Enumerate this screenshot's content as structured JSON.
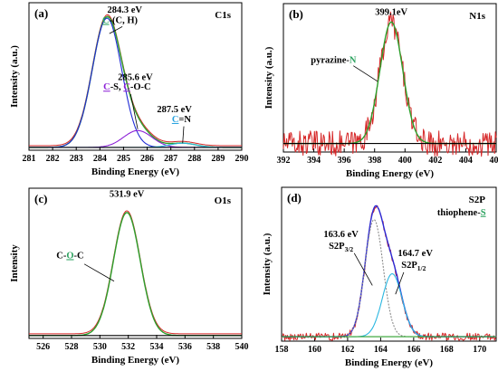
{
  "chart_data": [
    {
      "type": "line",
      "panel_label": "(a)",
      "element_label": "C1s",
      "xlabel": "Binding Energy (eV)",
      "ylabel": "Intensity (a.u.)",
      "xlim": [
        281,
        290
      ],
      "xticks": [
        "281",
        "282",
        "283",
        "284",
        "285",
        "286",
        "287",
        "288",
        "289",
        "290"
      ],
      "ylim": [
        0,
        1.05
      ],
      "peaks": [
        {
          "center": 284.3,
          "height": 0.92,
          "sigma": 0.62
        },
        {
          "center": 285.6,
          "height": 0.12,
          "sigma": 0.6
        },
        {
          "center": 287.5,
          "height": 0.03,
          "sigma": 0.55
        }
      ],
      "background": 0.02,
      "noise": 0,
      "annotations": [
        {
          "value": "284.3 eV",
          "x": 285.05,
          "y": 0.98,
          "color": "#000000"
        },
        {
          "rich": [
            {
              "t": "C",
              "c": "#2ca25f",
              "u": true
            },
            {
              "t": "-(C, H)",
              "c": "#000000"
            }
          ],
          "x": 284.85,
          "y": 0.905
        },
        {
          "value": "285.6 eV",
          "x": 285.5,
          "y": 0.5,
          "color": "#000000"
        },
        {
          "rich": [
            {
              "t": "C",
              "c": "#8b1fd6",
              "u": true
            },
            {
              "t": "-S, ",
              "c": "#000000"
            },
            {
              "t": "C",
              "c": "#8b1fd6",
              "u": true
            },
            {
              "t": "-O-C",
              "c": "#000000"
            }
          ],
          "x": 285.15,
          "y": 0.43
        },
        {
          "value": "287.5 eV",
          "x": 287.15,
          "y": 0.27,
          "color": "#000000"
        },
        {
          "rich": [
            {
              "t": "C",
              "c": "#29a3e0",
              "u": true
            },
            {
              "t": "=N",
              "c": "#000000"
            }
          ],
          "x": 287.45,
          "y": 0.2
        }
      ],
      "pointers": [
        {
          "from": [
            284.95,
            0.88
          ],
          "to": [
            284.4,
            0.83
          ]
        },
        {
          "from": [
            285.3,
            0.4
          ],
          "to": [
            285.6,
            0.15
          ]
        },
        {
          "from": [
            287.55,
            0.17
          ],
          "to": [
            287.5,
            0.05
          ]
        }
      ],
      "series": [
        {
          "role": "raw",
          "color": "#d62728"
        },
        {
          "role": "envelope",
          "color": "#2ca02c"
        },
        {
          "role": "component",
          "index": 0,
          "color": "#1f2bd6"
        },
        {
          "role": "component",
          "index": 1,
          "color": "#8b1fd6"
        },
        {
          "role": "component",
          "index": 2,
          "color": "#29b6e0"
        },
        {
          "role": "baseline",
          "color": "#000000"
        }
      ]
    },
    {
      "type": "line",
      "panel_label": "(b)",
      "element_label": "N1s",
      "xlabel": "Binding Energy (eV)",
      "ylabel": "Intensity (a.u.)",
      "xlim": [
        392,
        406
      ],
      "xticks": [
        "392",
        "394",
        "396",
        "398",
        "400",
        "402",
        "404",
        "406"
      ],
      "ylim": [
        0,
        1.05
      ],
      "peaks": [
        {
          "center": 399.1,
          "height": 0.86,
          "sigma": 0.75
        }
      ],
      "background": 0.06,
      "noise": 0.09,
      "annotations": [
        {
          "value": "399.1eV",
          "x": 399.1,
          "y": 0.97,
          "color": "#000000"
        },
        {
          "rich": [
            {
              "t": "pyrazine-",
              "c": "#000000"
            },
            {
              "t": "N",
              "c": "#2ca25f",
              "u": false
            }
          ],
          "x": 395.3,
          "y": 0.63
        }
      ],
      "pointers": [
        {
          "from": [
            396.6,
            0.61
          ],
          "to": [
            398.2,
            0.5
          ]
        }
      ],
      "series": [
        {
          "role": "raw",
          "color": "#d62728"
        },
        {
          "role": "envelope",
          "color": "#2ca02c"
        },
        {
          "role": "baseline",
          "color": "#000000"
        }
      ]
    },
    {
      "type": "line",
      "panel_label": "(c)",
      "element_label": "O1s",
      "xlabel": "Binding Energy (eV)",
      "ylabel": "Intensity",
      "xlim": [
        525,
        540
      ],
      "xticks": [
        "526",
        "528",
        "530",
        "532",
        "534",
        "536",
        "538",
        "540"
      ],
      "ylim": [
        0,
        1.05
      ],
      "peaks": [
        {
          "center": 531.9,
          "height": 0.86,
          "sigma": 0.95
        }
      ],
      "background": 0.02,
      "noise": 0,
      "annotations": [
        {
          "value": "531.9 eV",
          "x": 531.9,
          "y": 0.99,
          "color": "#000000"
        },
        {
          "rich": [
            {
              "t": "C-",
              "c": "#000000"
            },
            {
              "t": "O",
              "c": "#2ca25f",
              "u": true
            },
            {
              "t": "-C",
              "c": "#000000"
            }
          ],
          "x": 527.9,
          "y": 0.56
        }
      ],
      "pointers": [
        {
          "from": [
            528.9,
            0.52
          ],
          "to": [
            531.0,
            0.4
          ]
        }
      ],
      "series": [
        {
          "role": "raw",
          "color": "#d62728"
        },
        {
          "role": "envelope",
          "color": "#2ca02c"
        },
        {
          "role": "baseline",
          "color": "#000000"
        }
      ]
    },
    {
      "type": "line",
      "panel_label": "(d)",
      "element_label": "S2P",
      "xlabel": "Binding Energy (eV)",
      "ylabel": "Intensity (a.u.)",
      "xlim": [
        158,
        171
      ],
      "xticks": [
        "158",
        "160",
        "162",
        "164",
        "166",
        "168",
        "170"
      ],
      "ylim": [
        0,
        1.05
      ],
      "peaks": [
        {
          "center": 163.6,
          "height": 0.8,
          "sigma": 0.55
        },
        {
          "center": 164.7,
          "height": 0.43,
          "sigma": 0.6
        }
      ],
      "background": 0.03,
      "noise": 0.025,
      "annotations": [
        {
          "rich": [
            {
              "t": "thiophene-",
              "c": "#000000"
            },
            {
              "t": "S",
              "c": "#2ca25f",
              "u": true
            }
          ],
          "x": 168.9,
          "y": 0.86
        },
        {
          "value": "163.6 eV",
          "x": 161.6,
          "y": 0.71,
          "color": "#000000"
        },
        {
          "sub": {
            "base": "S2P",
            "sub": "3/2"
          },
          "x": 161.6,
          "y": 0.63
        },
        {
          "value": "164.7 eV",
          "x": 166.1,
          "y": 0.58,
          "color": "#000000"
        },
        {
          "sub": {
            "base": "S2P",
            "sub": "1/2"
          },
          "x": 166.0,
          "y": 0.5
        }
      ],
      "pointers": [
        {
          "from": [
            162.4,
            0.6
          ],
          "to": [
            163.5,
            0.38
          ]
        },
        {
          "from": [
            165.4,
            0.47
          ],
          "to": [
            164.9,
            0.32
          ]
        }
      ],
      "series": [
        {
          "role": "raw",
          "color": "#d62728"
        },
        {
          "role": "envelope",
          "color": "#2b2bd6"
        },
        {
          "role": "component",
          "index": 0,
          "color": "#8c8c8c"
        },
        {
          "role": "component",
          "index": 1,
          "color": "#29b6e0"
        },
        {
          "role": "baseline",
          "color": "#2ca02c"
        }
      ]
    }
  ]
}
